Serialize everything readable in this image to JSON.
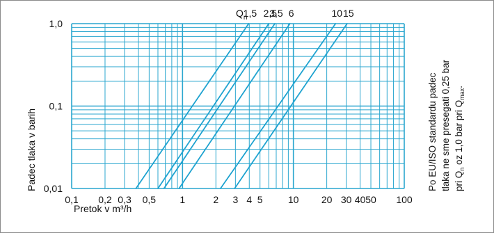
{
  "chart_data": {
    "type": "line",
    "x_scale": "log",
    "y_scale": "log",
    "xlim": [
      0.1,
      100
    ],
    "ylim": [
      0.01,
      1.0
    ],
    "grid": true,
    "xlabel": "Pretok v m³/h",
    "ylabel": "Padec tlaka v barih",
    "x_tick_labels": [
      "0,1",
      "0,2",
      "0,3",
      "0,5",
      "1",
      "2",
      "3",
      "4",
      "5",
      "10",
      "20",
      "30",
      "40",
      "50",
      "100"
    ],
    "y_tick_labels": [
      "0,01",
      "0,1",
      "1,0"
    ],
    "series_label_prefix": "Q",
    "series_label_prefix_sub": "n",
    "series": [
      {
        "label": "1,5",
        "points": [
          [
            0.38,
            0.01
          ],
          [
            3.95,
            1.0
          ]
        ]
      },
      {
        "label": "2,5",
        "points": [
          [
            0.6,
            0.01
          ],
          [
            6.0,
            1.0
          ]
        ]
      },
      {
        "label": "3,5",
        "points": [
          [
            0.68,
            0.01
          ],
          [
            6.8,
            1.0
          ]
        ]
      },
      {
        "label": "6",
        "points": [
          [
            0.93,
            0.01
          ],
          [
            9.3,
            1.0
          ]
        ]
      },
      {
        "label": "10",
        "points": [
          [
            2.2,
            0.01
          ],
          [
            24,
            1.0
          ]
        ]
      },
      {
        "label": "15",
        "points": [
          [
            2.95,
            0.01
          ],
          [
            30.5,
            1.0
          ]
        ]
      }
    ],
    "annotation_lines": [
      {
        "text": "Po EU/ISO standardu padec"
      },
      {
        "text": "tlaka ne sme presegati 0,25 bar"
      },
      {
        "text": "pri Q",
        "sub": "n",
        "text2": " oz 1,0 bar pri Q",
        "sub2": "max",
        "text3": "."
      }
    ],
    "colors": {
      "grid": "#2aa6cf",
      "lines": "#1fa3d0",
      "text": "#111111"
    }
  }
}
